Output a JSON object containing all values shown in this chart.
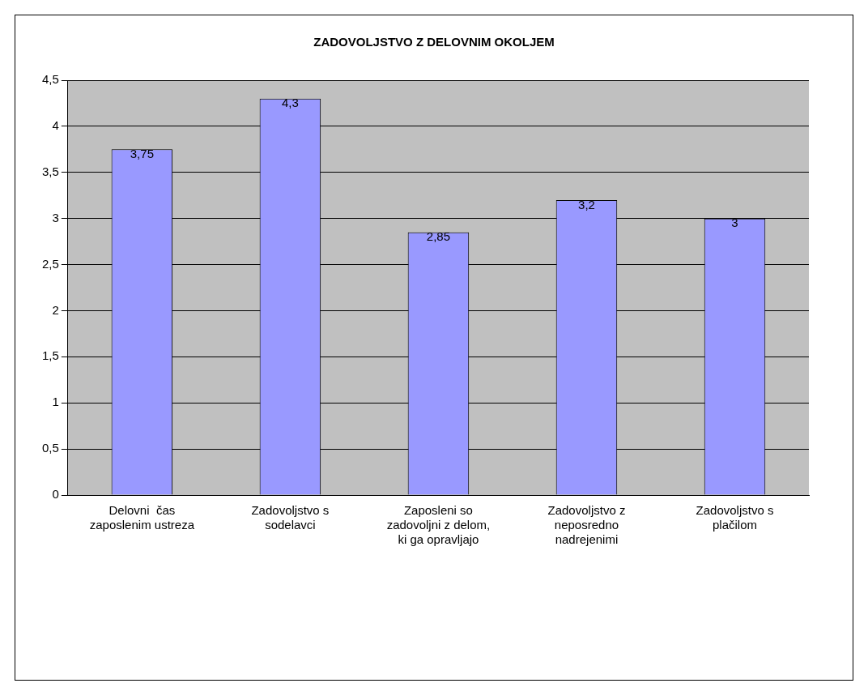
{
  "chart_data": {
    "type": "bar",
    "title": "ZADOVOLJSTVO Z DELOVNIM OKOLJEM",
    "categories": [
      "Delovni  čas zaposlenim ustreza",
      "Zadovoljstvo s sodelavci",
      "Zaposleni so zadovoljni z delom, ki ga opravljajo",
      "Zadovoljstvo z neposredno nadrejenimi",
      "Zadovoljstvo s plačilom"
    ],
    "values": [
      3.75,
      4.3,
      2.85,
      3.2,
      3
    ],
    "value_labels": [
      "3,75",
      "4,3",
      "2,85",
      "3,2",
      "3"
    ],
    "color": "#9999ff",
    "ylim": [
      0,
      4.5
    ],
    "yticks": [
      0,
      {
        "value": 0.5,
        "label": "0,5"
      },
      1,
      {
        "value": 1.5,
        "label": "1,5"
      },
      2,
      {
        "value": 2.5,
        "label": "2,5"
      },
      3,
      {
        "value": 3.5,
        "label": "3,5"
      },
      4,
      {
        "value": 4.5,
        "label": "4,5"
      }
    ],
    "grid": "y",
    "legend": false
  }
}
